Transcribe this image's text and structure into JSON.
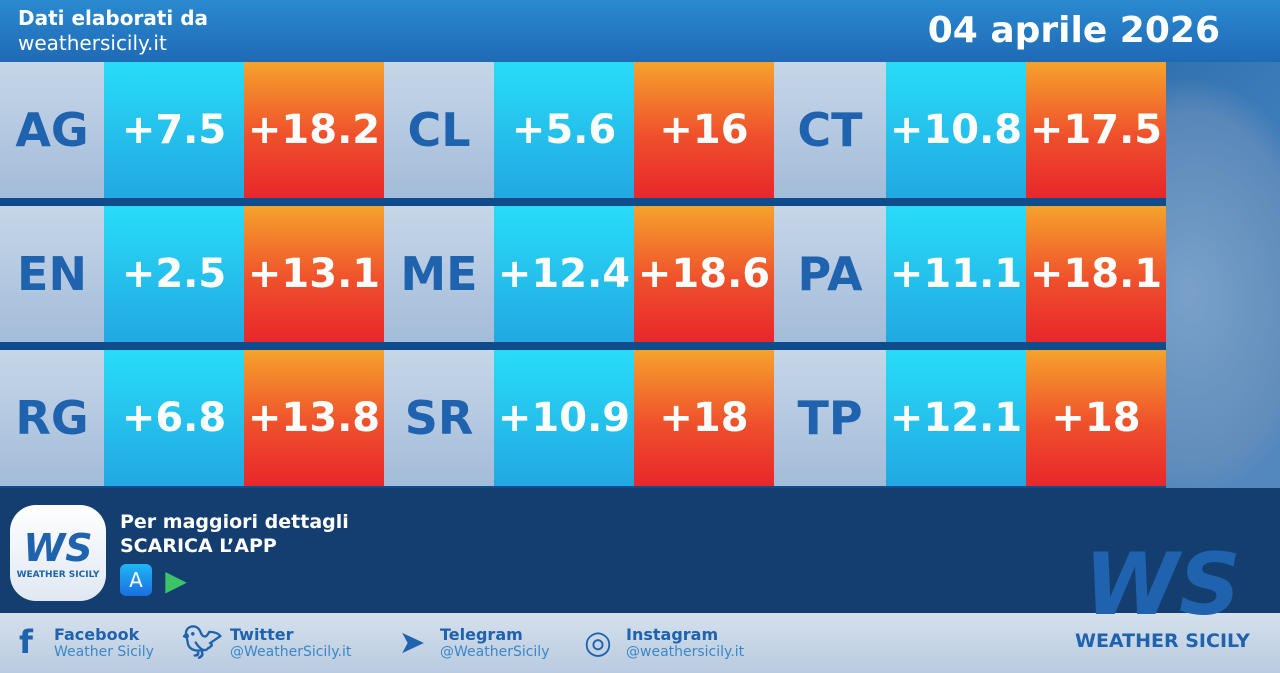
{
  "header": {
    "line1": "Dati elaborati da",
    "line2": "weathersicily.it",
    "date": "04 aprile 2026"
  },
  "rows": [
    [
      {
        "prov": "AG",
        "min": "+7.5",
        "max": "+18.2"
      },
      {
        "prov": "CL",
        "min": "+5.6",
        "max": "+16"
      },
      {
        "prov": "CT",
        "min": "+10.8",
        "max": "+17.5"
      }
    ],
    [
      {
        "prov": "EN",
        "min": "+2.5",
        "max": "+13.1"
      },
      {
        "prov": "ME",
        "min": "+12.4",
        "max": "+18.6"
      },
      {
        "prov": "PA",
        "min": "+11.1",
        "max": "+18.1"
      }
    ],
    [
      {
        "prov": "RG",
        "min": "+6.8",
        "max": "+13.8"
      },
      {
        "prov": "SR",
        "min": "+10.9",
        "max": "+18"
      },
      {
        "prov": "TP",
        "min": "+12.1",
        "max": "+18"
      }
    ]
  ],
  "app": {
    "line1": "Per maggiori dettagli",
    "line2": "SCARICA L’APP",
    "logo_text": "WS",
    "logo_sub": "WEATHER SICILY",
    "stores": [
      "app-store-icon",
      "google-play-icon"
    ]
  },
  "social": [
    {
      "icon": "facebook-icon",
      "name": "Facebook",
      "handle": "Weather Sicily"
    },
    {
      "icon": "twitter-icon",
      "name": "Twitter",
      "handle": "@WeatherSicily.it"
    },
    {
      "icon": "telegram-icon",
      "name": "Telegram",
      "handle": "@WeatherSicily"
    },
    {
      "icon": "instagram-icon",
      "name": "Instagram",
      "handle": "@weathersicily.it"
    }
  ],
  "brand": {
    "logo_text": "WS",
    "name": "WEATHER SICILY"
  },
  "colors": {
    "min_cell": "#22b8ec",
    "max_cell": "#ee4a2c",
    "label_cell": "#b6cae0",
    "accent": "#1f62ad"
  }
}
